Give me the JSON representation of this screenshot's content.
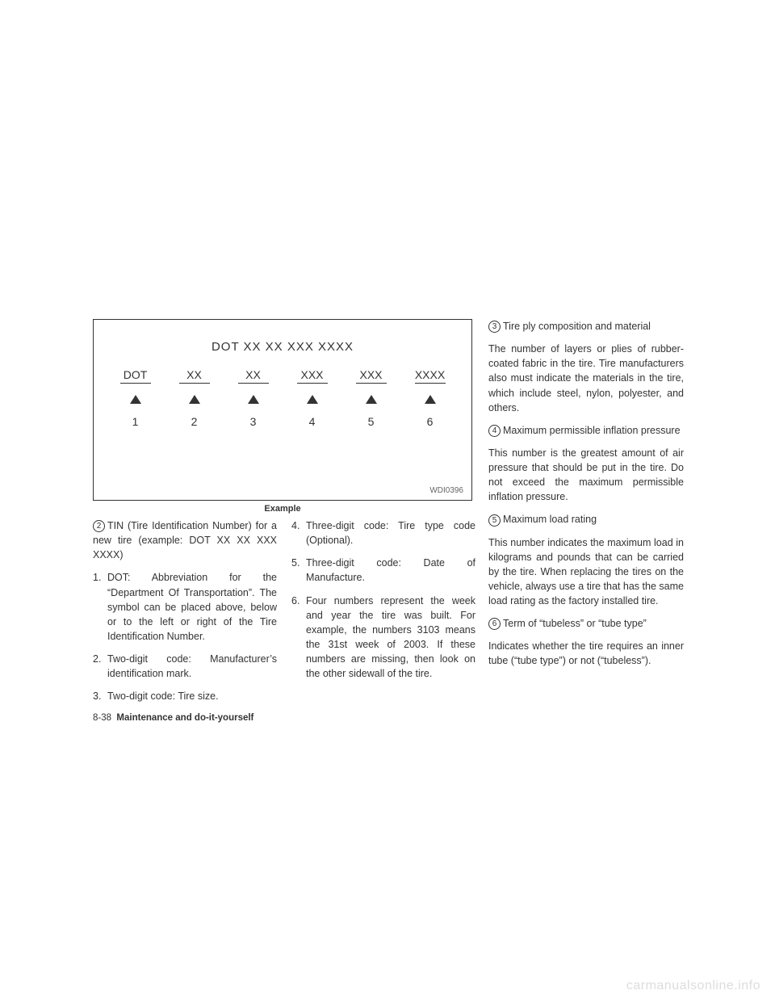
{
  "diagram": {
    "title": "DOT  XX  XX  XXX  XXXX",
    "items": [
      {
        "label": "DOT",
        "num": "1"
      },
      {
        "label": "XX",
        "num": "2"
      },
      {
        "label": "XX",
        "num": "3"
      },
      {
        "label": "XXX",
        "num": "4"
      },
      {
        "label": "XXX",
        "num": "5"
      },
      {
        "label": "XXXX",
        "num": "6"
      }
    ],
    "code": "WDI0396",
    "caption": "Example"
  },
  "left": {
    "intro_marker": "2",
    "intro": "TIN (Tire Identification Number) for a new tire (example: DOT XX XX XXX XXXX)",
    "items": [
      {
        "n": "1.",
        "t": "DOT: Abbreviation for the “Department Of Transportation”. The symbol can be placed above, below or to the left or right of the Tire Identification Number."
      },
      {
        "n": "2.",
        "t": "Two-digit code: Manufacturer’s identification mark."
      },
      {
        "n": "3.",
        "t": "Two-digit code: Tire size."
      }
    ],
    "footer_page": "8-38",
    "footer_section": "Maintenance and do-it-yourself"
  },
  "mid": {
    "items": [
      {
        "n": "4.",
        "t": "Three-digit code: Tire type code (Optional)."
      },
      {
        "n": "5.",
        "t": "Three-digit code: Date of Manufacture."
      },
      {
        "n": "6.",
        "t": "Four numbers represent the week and year the tire was built. For example, the numbers 3103 means the 31st week of 2003. If these numbers are missing, then look on the other sidewall of the tire."
      }
    ]
  },
  "right": {
    "sections": [
      {
        "marker": "3",
        "title": "Tire ply composition and material",
        "body": "The number of layers or plies of rubber-coated fabric in the tire. Tire manufacturers also must indicate the materials in the tire, which include steel, nylon, polyester, and others."
      },
      {
        "marker": "4",
        "title": "Maximum permissible inflation pressure",
        "body": "This number is the greatest amount of air pressure that should be put in the tire. Do not exceed the maximum permissible inflation pressure."
      },
      {
        "marker": "5",
        "title": "Maximum load rating",
        "body": "This number indicates the maximum load in kilograms and pounds that can be carried by the tire. When replacing the tires on the vehicle, always use a tire that has the same load rating as the factory installed tire."
      },
      {
        "marker": "6",
        "title": "Term of “tubeless” or “tube type”",
        "body": "Indicates whether the tire requires an inner tube (“tube type”) or not (“tubeless”)."
      }
    ]
  },
  "watermark": "carmanualsonline.info"
}
